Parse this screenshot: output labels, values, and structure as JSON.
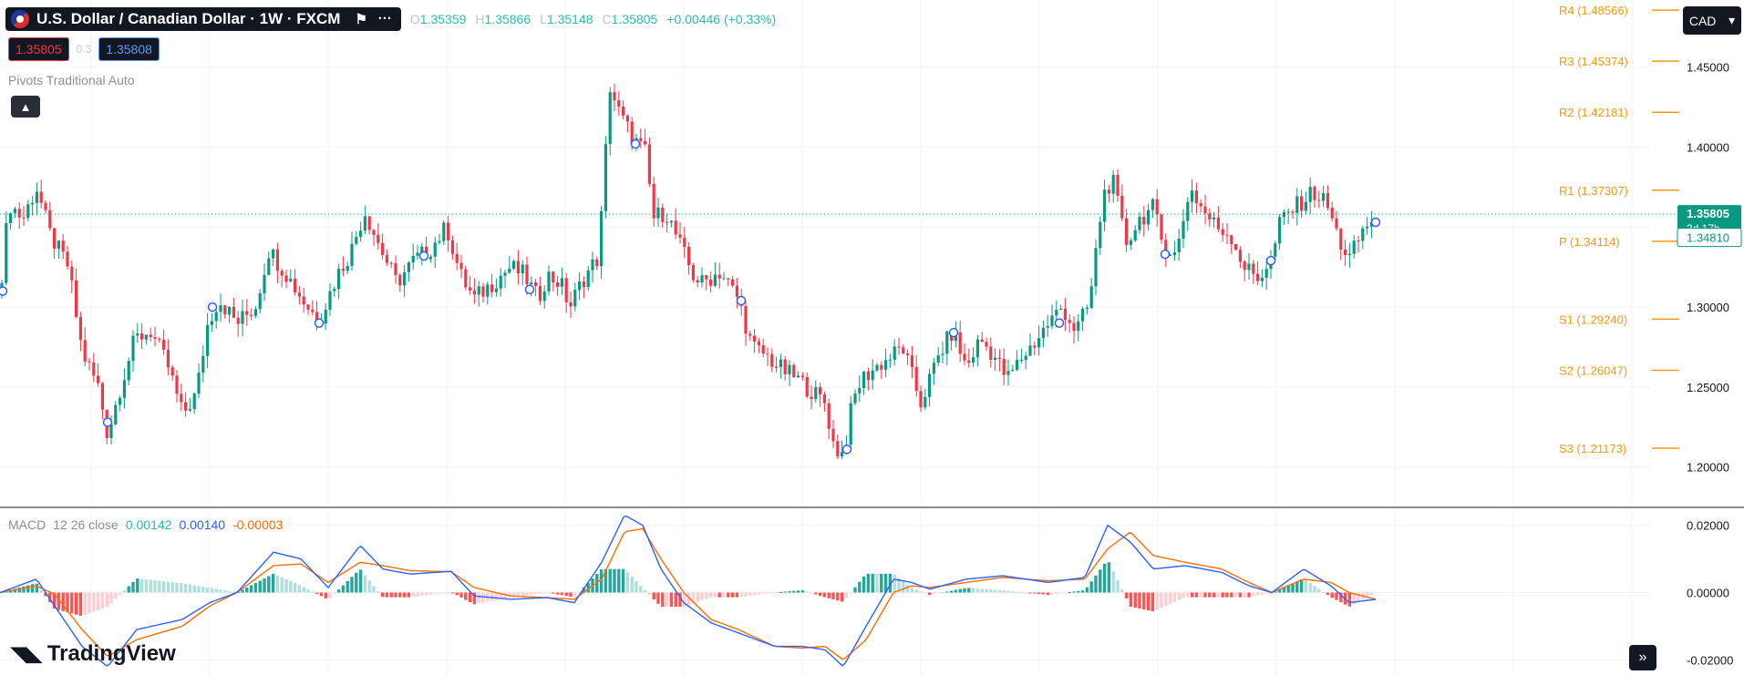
{
  "header": {
    "symbol_title": "U.S. Dollar / Canadian Dollar · 1W · FXCM",
    "ohlc": {
      "o_label": "O",
      "o": "1.35359",
      "h_label": "H",
      "h": "1.35866",
      "l_label": "L",
      "l": "1.35148",
      "c_label": "C",
      "c": "1.35805",
      "change": "+0.00446 (+0.33%)"
    }
  },
  "trade": {
    "sell_price": "1.35805",
    "spread": "0.3",
    "buy_price": "1.35808"
  },
  "pivots_indicator": {
    "name": "Pivots",
    "params": "Traditional Auto"
  },
  "macd_legend": {
    "name": "MACD",
    "params": "12 26 close",
    "macd_value": "0.00142",
    "signal_value": "0.00140",
    "hist_value": "-0.00003"
  },
  "currency_button": {
    "label": "CAD",
    "icon": "chevron-down-icon"
  },
  "brand": {
    "name": "TradingView"
  },
  "colors": {
    "up": "#089981",
    "down": "#f23645",
    "macd": "#2962ff",
    "signal": "#ff6d00",
    "pivot": "#f59a0f",
    "hist_up": "#26a69a",
    "hist_up_light": "#b2dfdb",
    "hist_down": "#ff5252",
    "hist_down_light": "#ffcdd2"
  },
  "chart_data": {
    "type": "candlestick",
    "price_axis": {
      "ticks": [
        "1.45000",
        "1.40000",
        "1.35000",
        "1.30000",
        "1.25000",
        "1.20000"
      ],
      "ylim": [
        1.177,
        1.492
      ]
    },
    "current_price": {
      "value": 1.35805,
      "label": "1.35805",
      "countdown": "3d 17h"
    },
    "ma_label": {
      "value": 1.3481,
      "label": "1.34810"
    },
    "pivot_levels": [
      {
        "name": "R4",
        "value": 1.48566,
        "label": "R4 (1.48566)"
      },
      {
        "name": "R3",
        "value": 1.45374,
        "label": "R3 (1.45374)"
      },
      {
        "name": "R2",
        "value": 1.42181,
        "label": "R2 (1.42181)"
      },
      {
        "name": "R1",
        "value": 1.37307,
        "label": "R1 (1.37307)"
      },
      {
        "name": "P",
        "value": 1.34114,
        "label": "P (1.34114)"
      },
      {
        "name": "S1",
        "value": 1.2924,
        "label": "S1 (1.29240)"
      },
      {
        "name": "S2",
        "value": 1.26047,
        "label": "S2 (1.26047)"
      },
      {
        "name": "S3",
        "value": 1.21173,
        "label": "S3 (1.21173)"
      }
    ],
    "close_anchors": [
      [
        0,
        1.31
      ],
      [
        10,
        1.365
      ],
      [
        25,
        1.355
      ],
      [
        40,
        1.375
      ],
      [
        55,
        1.345
      ],
      [
        75,
        1.325
      ],
      [
        90,
        1.272
      ],
      [
        108,
        1.25
      ],
      [
        118,
        1.22
      ],
      [
        132,
        1.25
      ],
      [
        148,
        1.28
      ],
      [
        165,
        1.285
      ],
      [
        185,
        1.262
      ],
      [
        200,
        1.233
      ],
      [
        215,
        1.245
      ],
      [
        228,
        1.29
      ],
      [
        240,
        1.305
      ],
      [
        260,
        1.29
      ],
      [
        280,
        1.3
      ],
      [
        295,
        1.336
      ],
      [
        315,
        1.32
      ],
      [
        335,
        1.302
      ],
      [
        350,
        1.292
      ],
      [
        370,
        1.32
      ],
      [
        385,
        1.335
      ],
      [
        400,
        1.36
      ],
      [
        415,
        1.34
      ],
      [
        435,
        1.315
      ],
      [
        455,
        1.33
      ],
      [
        470,
        1.335
      ],
      [
        490,
        1.35
      ],
      [
        505,
        1.32
      ],
      [
        520,
        1.305
      ],
      [
        540,
        1.315
      ],
      [
        560,
        1.325
      ],
      [
        575,
        1.32
      ],
      [
        590,
        1.305
      ],
      [
        600,
        1.32
      ],
      [
        615,
        1.315
      ],
      [
        625,
        1.3
      ],
      [
        640,
        1.318
      ],
      [
        655,
        1.33
      ],
      [
        662,
        1.37
      ],
      [
        668,
        1.44
      ],
      [
        680,
        1.42
      ],
      [
        695,
        1.405
      ],
      [
        710,
        1.395
      ],
      [
        715,
        1.355
      ],
      [
        730,
        1.36
      ],
      [
        745,
        1.34
      ],
      [
        760,
        1.32
      ],
      [
        770,
        1.315
      ],
      [
        790,
        1.322
      ],
      [
        810,
        1.305
      ],
      [
        825,
        1.275
      ],
      [
        840,
        1.27
      ],
      [
        855,
        1.262
      ],
      [
        875,
        1.255
      ],
      [
        895,
        1.245
      ],
      [
        905,
        1.24
      ],
      [
        915,
        1.212
      ],
      [
        925,
        1.208
      ],
      [
        935,
        1.24
      ],
      [
        945,
        1.255
      ],
      [
        960,
        1.262
      ],
      [
        975,
        1.268
      ],
      [
        990,
        1.275
      ],
      [
        1010,
        1.24
      ],
      [
        1030,
        1.27
      ],
      [
        1045,
        1.285
      ],
      [
        1060,
        1.262
      ],
      [
        1075,
        1.28
      ],
      [
        1090,
        1.27
      ],
      [
        1105,
        1.255
      ],
      [
        1120,
        1.268
      ],
      [
        1135,
        1.278
      ],
      [
        1150,
        1.29
      ],
      [
        1165,
        1.3
      ],
      [
        1180,
        1.285
      ],
      [
        1195,
        1.302
      ],
      [
        1210,
        1.37
      ],
      [
        1220,
        1.38
      ],
      [
        1235,
        1.34
      ],
      [
        1250,
        1.355
      ],
      [
        1265,
        1.362
      ],
      [
        1275,
        1.34
      ],
      [
        1290,
        1.332
      ],
      [
        1305,
        1.375
      ],
      [
        1320,
        1.36
      ],
      [
        1335,
        1.35
      ],
      [
        1350,
        1.345
      ],
      [
        1365,
        1.325
      ],
      [
        1380,
        1.318
      ],
      [
        1395,
        1.33
      ],
      [
        1405,
        1.355
      ],
      [
        1420,
        1.362
      ],
      [
        1440,
        1.372
      ],
      [
        1455,
        1.365
      ],
      [
        1470,
        1.34
      ],
      [
        1480,
        1.33
      ],
      [
        1495,
        1.348
      ],
      [
        1509,
        1.358
      ]
    ],
    "swing_markers": [
      [
        3,
        1.31
      ],
      [
        118,
        1.228
      ],
      [
        233,
        1.3
      ],
      [
        350,
        1.29
      ],
      [
        465,
        1.332
      ],
      [
        581,
        1.311
      ],
      [
        697,
        1.402
      ],
      [
        813,
        1.304
      ],
      [
        929,
        1.211
      ],
      [
        1046,
        1.284
      ],
      [
        1162,
        1.29
      ],
      [
        1278,
        1.333
      ],
      [
        1394,
        1.329
      ],
      [
        1509,
        1.353
      ]
    ],
    "macd_axis": {
      "ticks": [
        "0.02000",
        "0.00000",
        "-0.02000"
      ],
      "ylim": [
        -0.0245,
        0.0245
      ]
    },
    "macd_anchors": [
      [
        0,
        0.0
      ],
      [
        40,
        0.004
      ],
      [
        60,
        -0.004
      ],
      [
        90,
        -0.016
      ],
      [
        118,
        -0.022
      ],
      [
        150,
        -0.011
      ],
      [
        200,
        -0.008
      ],
      [
        230,
        -0.003
      ],
      [
        260,
        0.0
      ],
      [
        300,
        0.012
      ],
      [
        330,
        0.01
      ],
      [
        360,
        0.0015
      ],
      [
        395,
        0.014
      ],
      [
        420,
        0.007
      ],
      [
        450,
        0.0055
      ],
      [
        495,
        0.0063
      ],
      [
        520,
        -0.001
      ],
      [
        560,
        -0.002
      ],
      [
        600,
        -0.0015
      ],
      [
        630,
        -0.003
      ],
      [
        660,
        0.009
      ],
      [
        685,
        0.023
      ],
      [
        705,
        0.02
      ],
      [
        725,
        0.007
      ],
      [
        750,
        -0.003
      ],
      [
        780,
        -0.009
      ],
      [
        810,
        -0.012
      ],
      [
        850,
        -0.016
      ],
      [
        880,
        -0.016
      ],
      [
        905,
        -0.017
      ],
      [
        925,
        -0.022
      ],
      [
        950,
        -0.01
      ],
      [
        980,
        0.004
      ],
      [
        1000,
        0.003
      ],
      [
        1020,
        0.001
      ],
      [
        1060,
        0.004
      ],
      [
        1100,
        0.005
      ],
      [
        1150,
        0.003
      ],
      [
        1190,
        0.0045
      ],
      [
        1215,
        0.02
      ],
      [
        1240,
        0.015
      ],
      [
        1265,
        0.007
      ],
      [
        1300,
        0.008
      ],
      [
        1340,
        0.006
      ],
      [
        1370,
        0.002
      ],
      [
        1395,
        0.0
      ],
      [
        1430,
        0.007
      ],
      [
        1460,
        0.002
      ],
      [
        1480,
        -0.003
      ],
      [
        1509,
        -0.002
      ]
    ],
    "signal_anchors": [
      [
        0,
        0.0
      ],
      [
        40,
        0.002
      ],
      [
        60,
        -0.0005
      ],
      [
        90,
        -0.011
      ],
      [
        118,
        -0.019
      ],
      [
        150,
        -0.014
      ],
      [
        200,
        -0.01
      ],
      [
        230,
        -0.004
      ],
      [
        260,
        0.0
      ],
      [
        300,
        0.008
      ],
      [
        330,
        0.0085
      ],
      [
        360,
        0.003
      ],
      [
        395,
        0.009
      ],
      [
        420,
        0.008
      ],
      [
        450,
        0.0065
      ],
      [
        495,
        0.0062
      ],
      [
        520,
        0.0015
      ],
      [
        560,
        -0.001
      ],
      [
        600,
        -0.0015
      ],
      [
        630,
        -0.002
      ],
      [
        660,
        0.004
      ],
      [
        685,
        0.018
      ],
      [
        705,
        0.019
      ],
      [
        725,
        0.01
      ],
      [
        750,
        0.0
      ],
      [
        780,
        -0.008
      ],
      [
        810,
        -0.011
      ],
      [
        850,
        -0.016
      ],
      [
        880,
        -0.0165
      ],
      [
        905,
        -0.016
      ],
      [
        925,
        -0.02
      ],
      [
        950,
        -0.014
      ],
      [
        980,
        0.0
      ],
      [
        1000,
        0.002
      ],
      [
        1020,
        0.0015
      ],
      [
        1060,
        0.003
      ],
      [
        1100,
        0.0045
      ],
      [
        1150,
        0.0035
      ],
      [
        1190,
        0.004
      ],
      [
        1215,
        0.013
      ],
      [
        1240,
        0.018
      ],
      [
        1265,
        0.011
      ],
      [
        1300,
        0.009
      ],
      [
        1340,
        0.007
      ],
      [
        1370,
        0.003
      ],
      [
        1395,
        0.0
      ],
      [
        1430,
        0.004
      ],
      [
        1460,
        0.003
      ],
      [
        1480,
        0.0
      ],
      [
        1509,
        -0.002
      ]
    ]
  }
}
